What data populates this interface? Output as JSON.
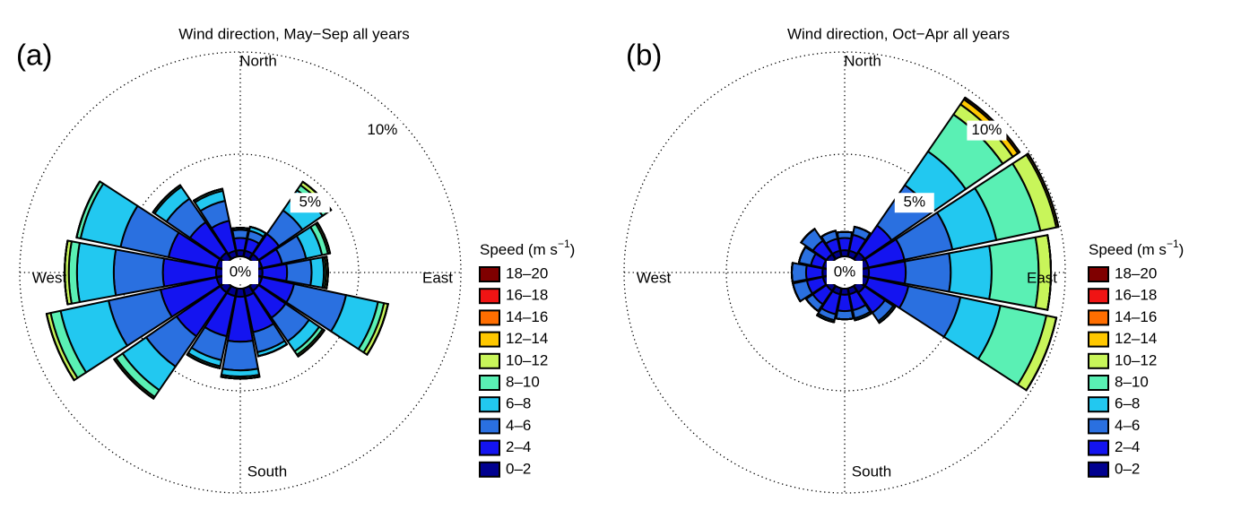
{
  "chart_data": [
    {
      "type": "windrose",
      "panel": "(a)",
      "title": "Wind direction, May−Sep all years",
      "categories": [
        "North",
        null,
        null,
        null,
        "East",
        null,
        null,
        null,
        "South",
        null,
        null,
        null,
        "West",
        null,
        null,
        null
      ],
      "ylim": [
        0,
        10
      ],
      "yticks": [
        {
          "value": 0,
          "label": "0%"
        },
        {
          "value": 5,
          "label": "5%"
        },
        {
          "value": 10,
          "label": "10%"
        }
      ],
      "legend_title": [
        "Speed (m s",
        "−1",
        ")"
      ],
      "series": [
        {
          "name": "0–2",
          "color": "#00008f",
          "values": [
            0.3,
            0.3,
            0.3,
            0.3,
            0.3,
            0.3,
            0.3,
            0.4,
            0.4,
            0.4,
            0.4,
            0.4,
            0.4,
            0.4,
            0.4,
            0.3
          ]
        },
        {
          "name": "2–4",
          "color": "#1414f0",
          "values": [
            0.6,
            0.6,
            1.2,
            1.0,
            1.2,
            1.6,
            1.6,
            1.8,
            2.2,
            2.0,
            2.6,
            2.8,
            2.6,
            2.4,
            1.8,
            1.5
          ]
        },
        {
          "name": "4–6",
          "color": "#2a70e0",
          "values": [
            0.4,
            0.4,
            1.4,
            1.2,
            1.2,
            2.6,
            1.4,
            1.0,
            1.4,
            1.2,
            1.8,
            2.6,
            2.4,
            2.4,
            1.4,
            1.0
          ]
        },
        {
          "name": "6–8",
          "color": "#22c8f0",
          "values": [
            0.1,
            0.2,
            1.2,
            0.8,
            0.6,
            1.6,
            0.6,
            0.2,
            0.3,
            0.3,
            1.4,
            2.4,
            1.8,
            2.0,
            0.7,
            0.5
          ]
        },
        {
          "name": "8–10",
          "color": "#5af0b4",
          "values": [
            0,
            0,
            0.3,
            0.3,
            0.1,
            0.3,
            0.2,
            0,
            0.1,
            0.1,
            0.4,
            0.5,
            0.4,
            0.2,
            0.1,
            0.1
          ]
        },
        {
          "name": "10–12",
          "color": "#c8f55a",
          "values": [
            0,
            0,
            0.2,
            0.1,
            0.1,
            0.2,
            0.1,
            0,
            0,
            0,
            0.1,
            0.2,
            0.2,
            0,
            0,
            0
          ]
        },
        {
          "name": "12–14",
          "color": "#ffc800",
          "values": [
            0,
            0,
            0,
            0,
            0,
            0,
            0,
            0,
            0,
            0,
            0,
            0,
            0,
            0,
            0,
            0
          ]
        },
        {
          "name": "14–16",
          "color": "#ff6e00",
          "values": [
            0,
            0,
            0,
            0,
            0,
            0,
            0,
            0,
            0,
            0,
            0,
            0,
            0,
            0,
            0,
            0
          ]
        },
        {
          "name": "16–18",
          "color": "#f01414",
          "values": [
            0,
            0,
            0,
            0,
            0,
            0,
            0,
            0,
            0,
            0,
            0,
            0,
            0,
            0,
            0,
            0
          ]
        },
        {
          "name": "18–20",
          "color": "#7f0000",
          "values": [
            0,
            0,
            0,
            0,
            0,
            0,
            0,
            0,
            0,
            0,
            0,
            0,
            0,
            0,
            0,
            0
          ]
        }
      ]
    },
    {
      "type": "windrose",
      "panel": "(b)",
      "title": "Wind direction, Oct−Apr all years",
      "categories": [
        "North",
        null,
        null,
        null,
        "East",
        null,
        null,
        null,
        "South",
        null,
        null,
        null,
        "West",
        null,
        null,
        null
      ],
      "ylim": [
        0,
        10
      ],
      "yticks": [
        {
          "value": 0,
          "label": "0%"
        },
        {
          "value": 5,
          "label": "5%"
        },
        {
          "value": 10,
          "label": "10%"
        }
      ],
      "legend_title": [
        "Speed (m s",
        "−1",
        ")"
      ],
      "series": [
        {
          "name": "0–2",
          "color": "#00008f",
          "values": [
            0.3,
            0.3,
            0.4,
            0.4,
            0.4,
            0.4,
            0.4,
            0.3,
            0.3,
            0.3,
            0.3,
            0.3,
            0.3,
            0.3,
            0.3,
            0.3
          ]
        },
        {
          "name": "2–4",
          "color": "#1414f0",
          "values": [
            0.6,
            0.8,
            1.6,
            1.8,
            1.8,
            2.0,
            1.2,
            0.8,
            0.8,
            1.0,
            0.8,
            0.8,
            0.8,
            0.6,
            0.8,
            0.6
          ]
        },
        {
          "name": "4–6",
          "color": "#2a70e0",
          "values": [
            0.3,
            0.4,
            2.4,
            2.4,
            2.2,
            2.6,
            0.5,
            0.4,
            0.4,
            0.3,
            0.4,
            0.7,
            0.7,
            0.6,
            0.7,
            0.4
          ]
        },
        {
          "name": "6–8",
          "color": "#22c8f0",
          "values": [
            0,
            0,
            2.0,
            2.2,
            2.0,
            2.0,
            0.1,
            0.1,
            0,
            0.1,
            0,
            0,
            0,
            0,
            0,
            0
          ]
        },
        {
          "name": "8–10",
          "color": "#5af0b4",
          "values": [
            0,
            0,
            2.2,
            2.2,
            2.3,
            2.3,
            0,
            0,
            0,
            0,
            0,
            0,
            0,
            0,
            0,
            0
          ]
        },
        {
          "name": "10–12",
          "color": "#c8f55a",
          "values": [
            0,
            0,
            0.6,
            0.8,
            0.6,
            0.5,
            0,
            0,
            0,
            0,
            0,
            0,
            0,
            0,
            0,
            0
          ]
        },
        {
          "name": "12–14",
          "color": "#ffc800",
          "values": [
            0,
            0,
            0.3,
            0.1,
            0,
            0,
            0,
            0,
            0,
            0,
            0,
            0,
            0,
            0,
            0,
            0
          ]
        },
        {
          "name": "14–16",
          "color": "#ff6e00",
          "values": [
            0,
            0,
            0.1,
            0,
            0,
            0,
            0,
            0,
            0,
            0,
            0,
            0,
            0,
            0,
            0,
            0
          ]
        },
        {
          "name": "16–18",
          "color": "#f01414",
          "values": [
            0,
            0,
            0,
            0,
            0,
            0,
            0,
            0,
            0,
            0,
            0,
            0,
            0,
            0,
            0,
            0
          ]
        },
        {
          "name": "18–20",
          "color": "#7f0000",
          "values": [
            0,
            0,
            0,
            0,
            0,
            0,
            0,
            0,
            0,
            0,
            0,
            0,
            0,
            0,
            0,
            0
          ]
        }
      ]
    }
  ]
}
